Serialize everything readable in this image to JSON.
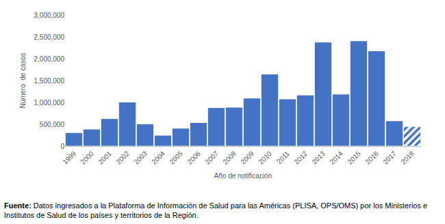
{
  "chart_data": {
    "type": "bar",
    "x_label": "Año de notificación",
    "y_label": "Número  de casos",
    "categories": [
      "1999",
      "2000",
      "2001",
      "2002",
      "2003",
      "2004",
      "2005",
      "2006",
      "2007",
      "2008",
      "2009",
      "2010",
      "2011",
      "2012",
      "2013",
      "2014",
      "2015",
      "2016",
      "2017",
      "2018"
    ],
    "series": [
      {
        "color": "#4472c4",
        "marker": "solid",
        "values": [
          310000,
          390000,
          630000,
          1010000,
          510000,
          250000,
          410000,
          540000,
          880000,
          890000,
          1100000,
          1650000,
          1080000,
          1170000,
          2380000,
          1190000,
          2410000,
          2180000,
          580000,
          null
        ]
      },
      {
        "color": "#4472c4",
        "marker": "hatched",
        "values": [
          null,
          null,
          null,
          null,
          null,
          null,
          null,
          null,
          null,
          null,
          null,
          null,
          null,
          null,
          null,
          null,
          null,
          null,
          null,
          450000
        ]
      }
    ],
    "ylim": [
      0,
      3000000
    ],
    "yticks": [
      0,
      {
        "value": 500000,
        "label": "500,000"
      },
      {
        "value": 1000000,
        "label": "1,000,000"
      },
      {
        "value": 1500000,
        "label": "1,500,000"
      },
      {
        "value": 2000000,
        "label": "2,000,000"
      },
      {
        "value": 2500000,
        "label": "2,500,000"
      },
      {
        "value": 3000000,
        "label": "3,000,000"
      }
    ],
    "grid": false,
    "source": {
      "label": "Fuente:",
      "text": "Datos ingresados a la Plataforma de Información de Salud para las Américas (PLISA, OPS/OMS) por los Ministerios e Institutos de Salud de los países y territorios de la Región."
    }
  }
}
